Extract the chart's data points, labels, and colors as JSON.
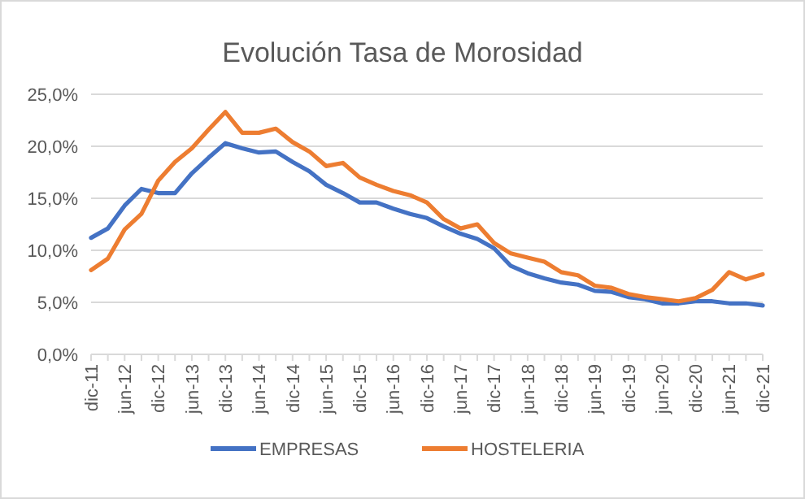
{
  "chart_data": {
    "type": "line",
    "title": "Evolución Tasa de Morosidad",
    "categories": [
      "dic-11",
      null,
      "jun-12",
      null,
      "dic-12",
      null,
      "jun-13",
      null,
      "dic-13",
      null,
      "jun-14",
      null,
      "dic-14",
      null,
      "jun-15",
      null,
      "dic-15",
      null,
      "jun-16",
      null,
      "dic-16",
      null,
      "jun-17",
      null,
      "dic-17",
      null,
      "jun-18",
      null,
      "dic-18",
      null,
      "jun-19",
      null,
      "dic-19",
      null,
      "jun-20",
      null,
      "dic-20",
      null,
      "jun-21",
      null,
      "dic-21"
    ],
    "series": [
      {
        "name": "EMPRESAS",
        "color": "#4472c4",
        "values": [
          11.2,
          12.1,
          14.3,
          15.9,
          15.5,
          15.5,
          17.4,
          18.9,
          20.3,
          19.8,
          19.4,
          19.5,
          18.5,
          17.6,
          16.3,
          15.5,
          14.6,
          14.6,
          14.0,
          13.5,
          13.1,
          12.3,
          11.6,
          11.1,
          10.2,
          8.5,
          7.8,
          7.3,
          6.9,
          6.7,
          6.1,
          6.0,
          5.5,
          5.3,
          4.9,
          4.9,
          5.1,
          5.1,
          4.9,
          4.9,
          4.7
        ]
      },
      {
        "name": "HOSTELERIA",
        "color": "#ed7d31",
        "values": [
          8.1,
          9.2,
          12.0,
          13.5,
          16.7,
          18.5,
          19.8,
          21.6,
          23.3,
          21.3,
          21.3,
          21.7,
          20.4,
          19.5,
          18.1,
          18.4,
          17.0,
          16.3,
          15.7,
          15.3,
          14.6,
          13.0,
          12.1,
          12.5,
          10.7,
          9.7,
          9.3,
          8.9,
          7.9,
          7.6,
          6.6,
          6.4,
          5.8,
          5.5,
          5.3,
          5.1,
          5.4,
          6.2,
          7.9,
          7.2,
          7.7
        ]
      }
    ],
    "ylim": [
      0,
      25
    ],
    "yticks": [
      {
        "value": 0,
        "label": "0,0%"
      },
      {
        "value": 5,
        "label": "5,0%"
      },
      {
        "value": 10,
        "label": "10,0%"
      },
      {
        "value": 15,
        "label": "15,0%"
      },
      {
        "value": 20,
        "label": "20,0%"
      },
      {
        "value": 25,
        "label": "25,0%"
      }
    ],
    "grid": "y",
    "legend": "bottom",
    "marker": "none",
    "line_style": "solid"
  }
}
